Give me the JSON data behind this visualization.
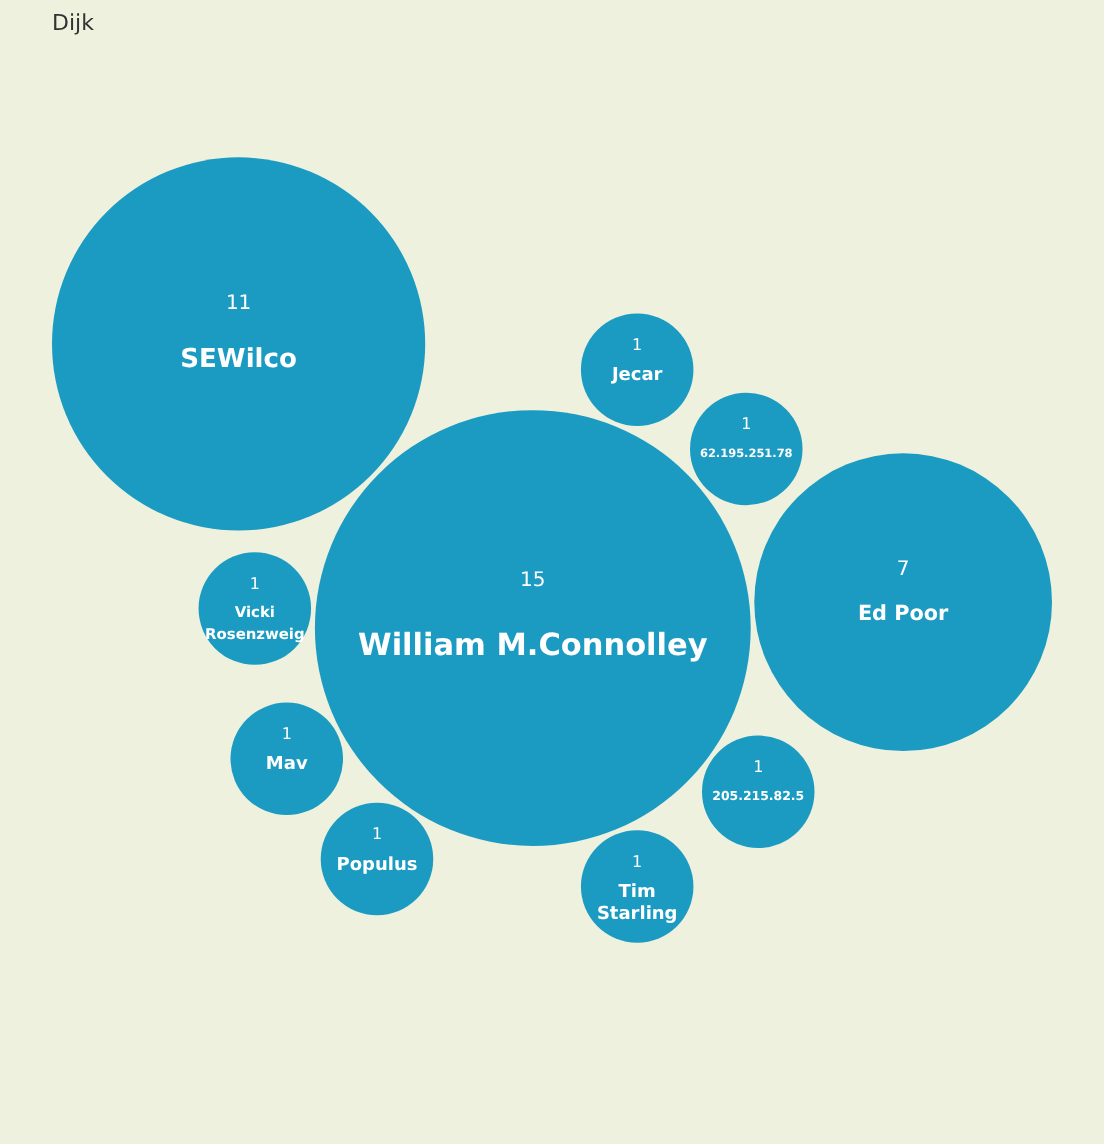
{
  "chart_data": {
    "type": "other",
    "annotations": [
      "Dijk"
    ],
    "color": "#1b9bc2",
    "categories": [
      "William M.Connolley",
      "SEWilco",
      "Ed Poor",
      "Jecar",
      "Vicki Rosenzweig",
      "Populus",
      "Tim Starling",
      "205.215.82.5",
      "62.195.251.78",
      "Mav"
    ],
    "values": [
      15,
      11,
      7,
      1,
      1,
      1,
      1,
      1,
      1,
      1
    ],
    "data_labels": true
  }
}
